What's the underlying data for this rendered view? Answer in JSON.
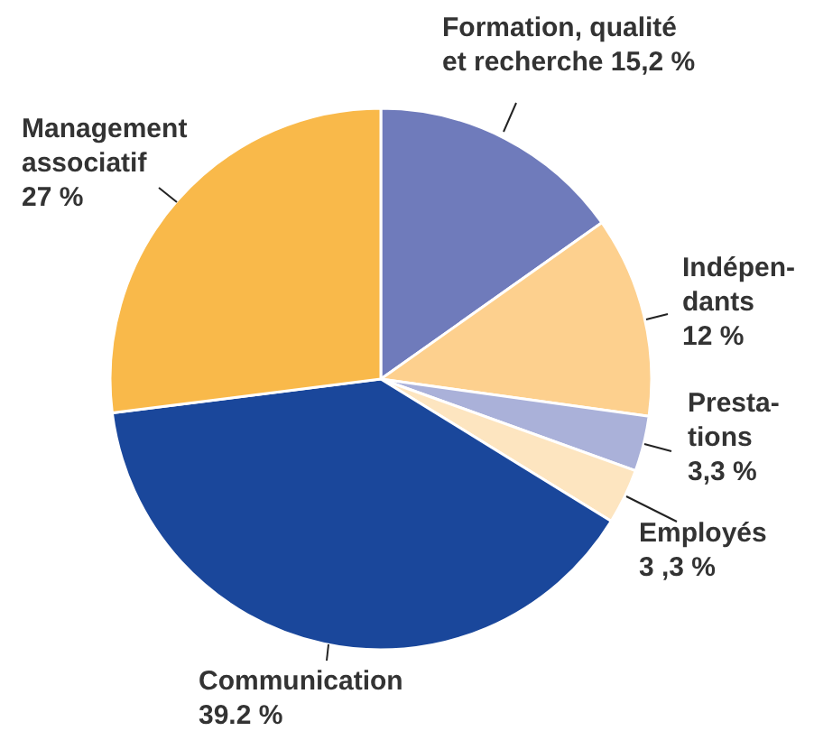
{
  "chart_data": {
    "type": "pie",
    "categories": [
      "Formation, qualité\net recherche",
      "Indépen-\ndants",
      "Presta-\ntions",
      "Employés",
      "Communication",
      "Management\nassociatif"
    ],
    "values": [
      15.2,
      12,
      3.3,
      3.3,
      39.2,
      27
    ],
    "value_labels": [
      "15,2 %",
      "12 %",
      "3,3 %",
      "3 ,3 %",
      "39.2 %",
      "27 %"
    ],
    "colors": [
      "#6f7bbb",
      "#fdd08e",
      "#aab1d9",
      "#fde5c0",
      "#1a479b",
      "#f9b94a"
    ]
  }
}
